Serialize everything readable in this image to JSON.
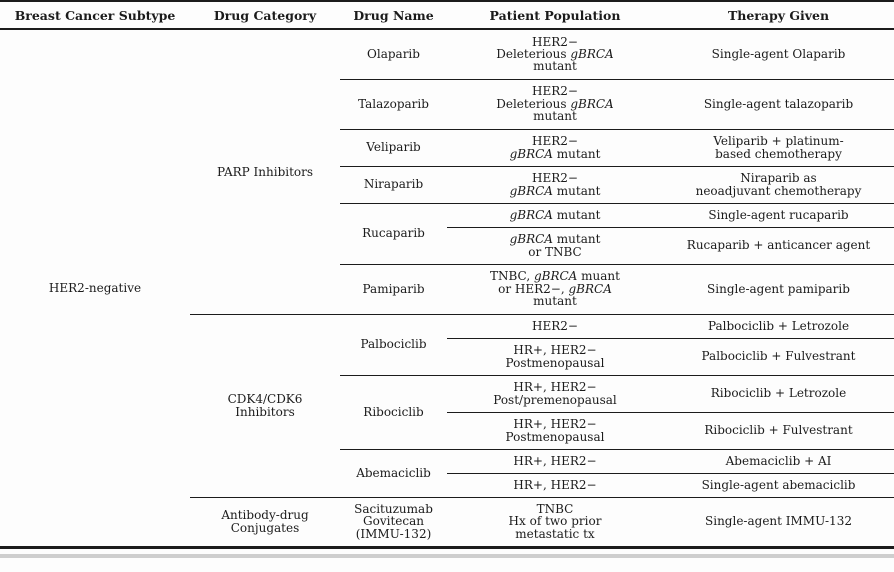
{
  "header": {
    "labels": [
      "Breast Cancer Subtype",
      "Drug Category",
      "Drug Name",
      "Patient Population",
      "Therapy Given"
    ]
  },
  "subtype": "HER2-negative",
  "sections": [
    {
      "category_lines": [
        "PARP Inhibitors"
      ],
      "drugs": [
        {
          "name_lines": [
            "Olaparib"
          ],
          "entries": [
            {
              "population_lines": [
                [
                  {
                    "t": "HER2−"
                  }
                ],
                [
                  {
                    "t": "Deleterious "
                  },
                  {
                    "t": "gBRCA",
                    "i": true
                  }
                ],
                [
                  {
                    "t": "mutant"
                  }
                ]
              ],
              "therapy_lines": [
                "Single-agent Olaparib"
              ]
            }
          ]
        },
        {
          "name_lines": [
            "Talazoparib"
          ],
          "entries": [
            {
              "population_lines": [
                [
                  {
                    "t": "HER2−"
                  }
                ],
                [
                  {
                    "t": "Deleterious "
                  },
                  {
                    "t": "gBRCA",
                    "i": true
                  }
                ],
                [
                  {
                    "t": "mutant"
                  }
                ]
              ],
              "therapy_lines": [
                "Single-agent talazoparib"
              ]
            }
          ]
        },
        {
          "name_lines": [
            "Veliparib"
          ],
          "entries": [
            {
              "population_lines": [
                [
                  {
                    "t": "HER2−"
                  }
                ],
                [
                  {
                    "t": "gBRCA",
                    "i": true
                  },
                  {
                    "t": " mutant"
                  }
                ]
              ],
              "therapy_lines": [
                "Veliparib + platinum-",
                "based chemotherapy"
              ]
            }
          ]
        },
        {
          "name_lines": [
            "Niraparib"
          ],
          "entries": [
            {
              "population_lines": [
                [
                  {
                    "t": "HER2−"
                  }
                ],
                [
                  {
                    "t": "gBRCA",
                    "i": true
                  },
                  {
                    "t": " mutant"
                  }
                ]
              ],
              "therapy_lines": [
                "Niraparib as",
                "neoadjuvant chemotherapy"
              ]
            }
          ]
        },
        {
          "name_lines": [
            "Rucaparib"
          ],
          "entries": [
            {
              "population_lines": [
                [
                  {
                    "t": "gBRCA",
                    "i": true
                  },
                  {
                    "t": " mutant"
                  }
                ]
              ],
              "therapy_lines": [
                "Single-agent rucaparib"
              ]
            },
            {
              "population_lines": [
                [
                  {
                    "t": "gBRCA",
                    "i": true
                  },
                  {
                    "t": " mutant"
                  }
                ],
                [
                  {
                    "t": "or TNBC"
                  }
                ]
              ],
              "therapy_lines": [
                "Rucaparib + anticancer agent"
              ]
            }
          ]
        },
        {
          "name_lines": [
            "Pamiparib"
          ],
          "entries": [
            {
              "population_lines": [
                [
                  {
                    "t": "TNBC, "
                  },
                  {
                    "t": "gBRCA",
                    "i": true
                  },
                  {
                    "t": " muant"
                  }
                ],
                [
                  {
                    "t": "or HER2−, "
                  },
                  {
                    "t": "gBRCA",
                    "i": true
                  }
                ],
                [
                  {
                    "t": "mutant"
                  }
                ]
              ],
              "therapy_lines": [
                "Single-agent pamiparib"
              ]
            }
          ]
        }
      ]
    },
    {
      "category_lines": [
        "CDK4/CDK6",
        "Inhibitors"
      ],
      "drugs": [
        {
          "name_lines": [
            "Palbociclib"
          ],
          "entries": [
            {
              "population_lines": [
                [
                  {
                    "t": "HER2−"
                  }
                ]
              ],
              "therapy_lines": [
                "Palbociclib + Letrozole"
              ]
            },
            {
              "population_lines": [
                [
                  {
                    "t": "HR+, HER2−"
                  }
                ],
                [
                  {
                    "t": "Postmenopausal"
                  }
                ]
              ],
              "therapy_lines": [
                "Palbociclib + Fulvestrant"
              ]
            }
          ]
        },
        {
          "name_lines": [
            "Ribociclib"
          ],
          "entries": [
            {
              "population_lines": [
                [
                  {
                    "t": "HR+, HER2−"
                  }
                ],
                [
                  {
                    "t": "Post/premenopausal"
                  }
                ]
              ],
              "therapy_lines": [
                "Ribociclib + Letrozole"
              ]
            },
            {
              "population_lines": [
                [
                  {
                    "t": "HR+, HER2−"
                  }
                ],
                [
                  {
                    "t": "Postmenopausal"
                  }
                ]
              ],
              "therapy_lines": [
                "Ribociclib + Fulvestrant"
              ]
            }
          ]
        },
        {
          "name_lines": [
            "Abemaciclib"
          ],
          "entries": [
            {
              "population_lines": [
                [
                  {
                    "t": "HR+, HER2−"
                  }
                ]
              ],
              "therapy_lines": [
                "Abemaciclib + AI"
              ]
            },
            {
              "population_lines": [
                [
                  {
                    "t": "HR+, HER2−"
                  }
                ]
              ],
              "therapy_lines": [
                "Single-agent abemaciclib"
              ]
            }
          ]
        }
      ]
    },
    {
      "category_lines": [
        "Antibody-drug",
        "Conjugates"
      ],
      "drugs": [
        {
          "name_lines": [
            "Sacituzumab",
            "Govitecan",
            "(IMMU-132)"
          ],
          "entries": [
            {
              "population_lines": [
                [
                  {
                    "t": "TNBC"
                  }
                ],
                [
                  {
                    "t": "Hx of two prior"
                  }
                ],
                [
                  {
                    "t": "metastatic tx"
                  }
                ]
              ],
              "therapy_lines": [
                "Single-agent IMMU-132"
              ]
            }
          ]
        }
      ]
    }
  ],
  "colors": {
    "rule": "#1c1c1c",
    "text": "#1b1b1b",
    "background": "#fdfdfd",
    "scan_artifact": "#c6c6c6"
  }
}
